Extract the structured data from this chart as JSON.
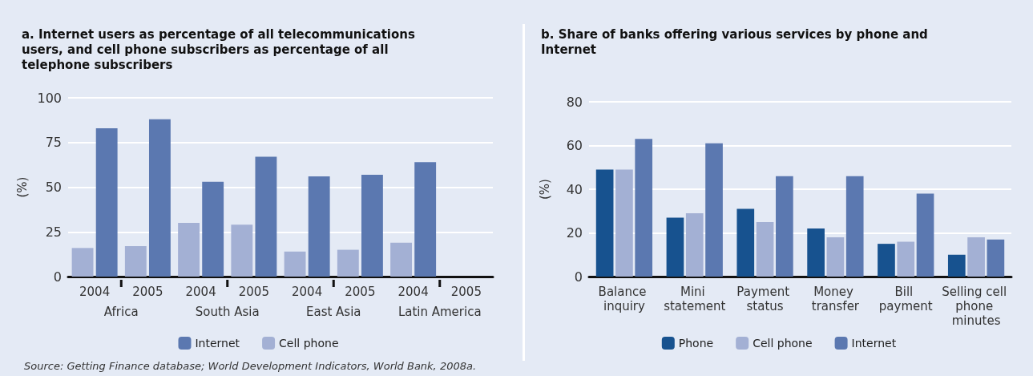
{
  "chart_data": [
    {
      "type": "bar",
      "title": "a. Internet users as percentage of all telecommunications users, and cell phone subscribers as percentage of all telephone subscribers",
      "ylabel": "(%)",
      "categories": [
        "2004",
        "2005",
        "2004",
        "2005",
        "2004",
        "2005",
        "2004",
        "2005"
      ],
      "series": [
        {
          "name": "Cell phone",
          "color": "#a3b0d4",
          "values": [
            16,
            17,
            30,
            29,
            14,
            15,
            19,
            null
          ]
        },
        {
          "name": "Internet",
          "color": "#5b78b0",
          "values": [
            83,
            88,
            53,
            67,
            56,
            57,
            64,
            null
          ]
        }
      ],
      "ylim": [
        0,
        100
      ],
      "yticks": [
        0,
        25,
        50,
        75,
        100
      ],
      "grid": "y",
      "legend": "bottom",
      "annotations": [
        "Africa",
        "South Asia",
        "East Asia",
        "Latin America",
        "Source: Getting Finance database; World Development Indicators, World Bank, 2008a."
      ]
    },
    {
      "type": "bar",
      "title": "b. Share of banks offering various services by phone and Internet",
      "ylabel": "(%)",
      "categories": [
        "Balance inquiry",
        "Mini statement",
        "Payment status",
        "Money transfer",
        "Bill payment",
        "Selling cell phone minutes"
      ],
      "series": [
        {
          "name": "Phone",
          "color": "#17528f",
          "values": [
            49,
            27,
            31,
            22,
            15,
            10
          ]
        },
        {
          "name": "Cell phone",
          "color": "#a3b0d4",
          "values": [
            49,
            29,
            25,
            18,
            16,
            18
          ]
        },
        {
          "name": "Internet",
          "color": "#5b78b0",
          "values": [
            63,
            61,
            46,
            46,
            38,
            17
          ]
        }
      ],
      "ylim": [
        0,
        80
      ],
      "yticks": [
        0,
        20,
        40,
        60,
        80
      ],
      "grid": "y",
      "legend": "bottom"
    }
  ]
}
